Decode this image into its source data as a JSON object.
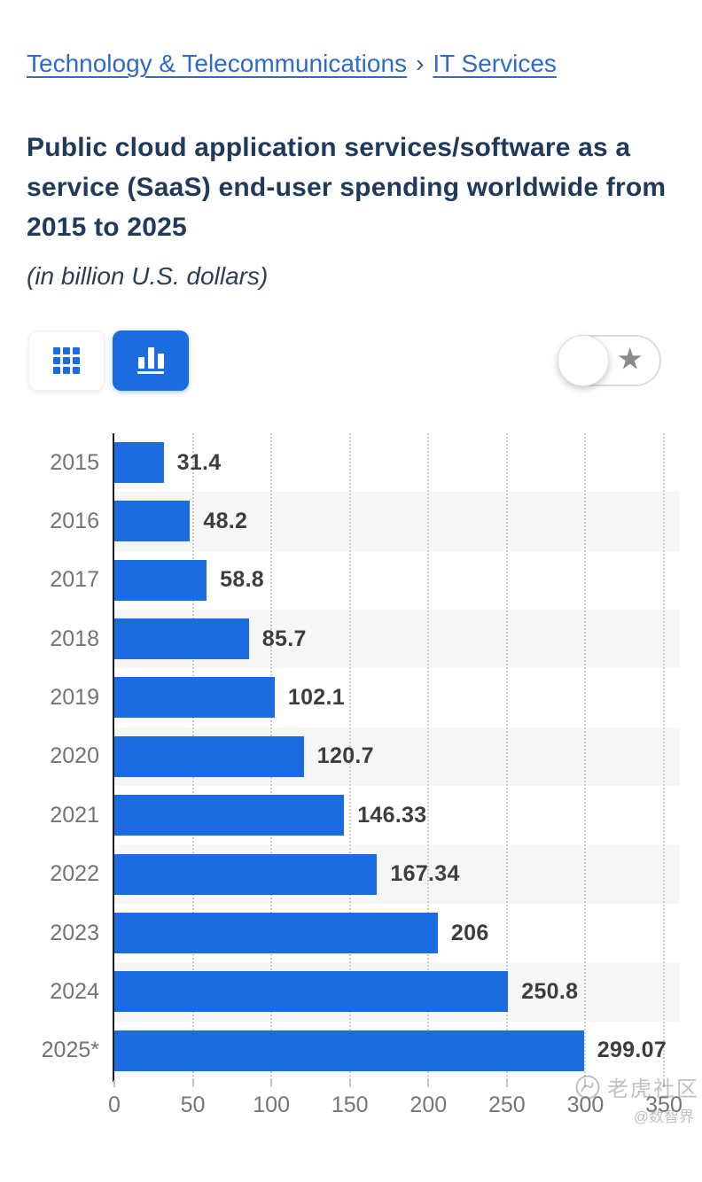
{
  "breadcrumb": {
    "separator": "›",
    "items": [
      {
        "label": "Technology & Telecommunications"
      },
      {
        "label": "IT Services"
      }
    ]
  },
  "header": {
    "title": "Public cloud application services/software as a service (SaaS) end-user spending worldwide from 2015 to 2025",
    "subtitle": "(in billion U.S. dollars)"
  },
  "toolbar": {
    "table_view_icon": "grid-icon",
    "chart_view_icon": "bar-chart-icon",
    "selected_view": "chart",
    "favorite_toggle": {
      "state": "off",
      "icon": "star-icon"
    }
  },
  "colors": {
    "bar": "#1a6ce0",
    "link": "#2d6bc4",
    "title": "#203a5c",
    "band": "#f6f6f6",
    "gridline": "#cbcbcb",
    "value_label": "#3d3d3d",
    "axis_label": "#757575",
    "star": "#8a8a8a"
  },
  "chart_data": {
    "type": "bar",
    "orientation": "horizontal",
    "title": "Public cloud application services/software as a service (SaaS) end-user spending worldwide from 2015 to 2025",
    "subtitle": "(in billion U.S. dollars)",
    "categories": [
      "2015",
      "2016",
      "2017",
      "2018",
      "2019",
      "2020",
      "2021",
      "2022",
      "2023",
      "2024",
      "2025*"
    ],
    "values": [
      31.4,
      48.2,
      58.8,
      85.7,
      102.1,
      120.7,
      146.33,
      167.34,
      206,
      250.8,
      299.07
    ],
    "value_labels": [
      "31.4",
      "48.2",
      "58.8",
      "85.7",
      "102.1",
      "120.7",
      "146.33",
      "167.34",
      "206",
      "250.8",
      "299.07"
    ],
    "xlabel": "",
    "ylabel": "",
    "xlim": [
      0,
      350
    ],
    "x_ticks": [
      0,
      50,
      100,
      150,
      200,
      250,
      300,
      350
    ],
    "grid": "dotted-vertical",
    "alternating_row_bands": true,
    "legend": "none"
  },
  "watermark": {
    "name": "老虎社区",
    "handle": "@数智界"
  }
}
